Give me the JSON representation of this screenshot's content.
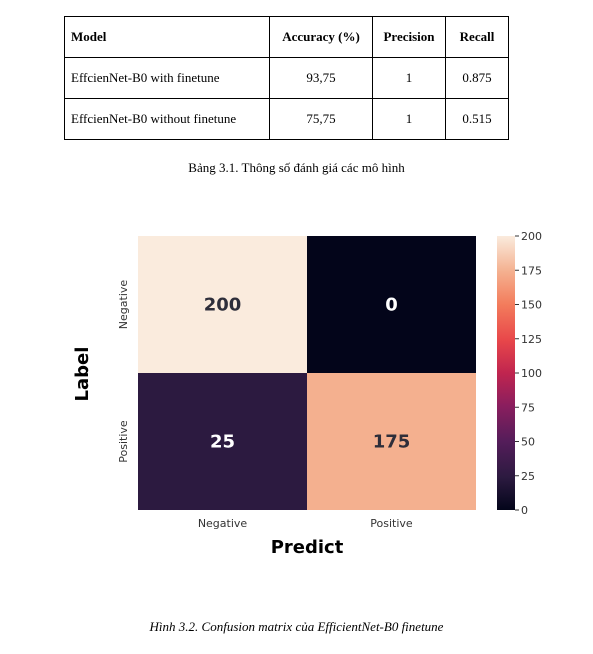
{
  "table": {
    "headers": [
      "Model",
      "Accuracy (%)",
      "Precision",
      "Recall"
    ],
    "rows": [
      [
        "EffcienNet-B0 with finetune",
        "93,75",
        "1",
        "0.875"
      ],
      [
        "EffcienNet-B0 without finetune",
        "75,75",
        "1",
        "0.515"
      ]
    ],
    "caption": "Bảng 3.1. Thông số đánh giá các mô hình"
  },
  "chart_data": {
    "type": "heatmap",
    "row_labels": [
      "Negative",
      "Positive"
    ],
    "col_labels": [
      "Negative",
      "Positive"
    ],
    "values": [
      [
        200,
        0
      ],
      [
        25,
        175
      ]
    ],
    "cell_labels": [
      [
        "200",
        "0"
      ],
      [
        "25",
        "175"
      ]
    ],
    "ylabel": "Label",
    "xlabel": "Predict",
    "colorbar": {
      "min": 0,
      "max": 200,
      "ticks": [
        "0",
        "25",
        "50",
        "75",
        "100",
        "125",
        "150",
        "175",
        "200"
      ]
    },
    "colors": {
      "v0": "#03051a",
      "v25": "#2c1a40",
      "v175": "#f4b08f",
      "v200": "#faebdd",
      "text_dark": "#2e2e3a",
      "text_light": "#ffffff"
    }
  },
  "figure_caption": "Hình 3.2. Confusion matrix của EfficientNet-B0 finetune"
}
